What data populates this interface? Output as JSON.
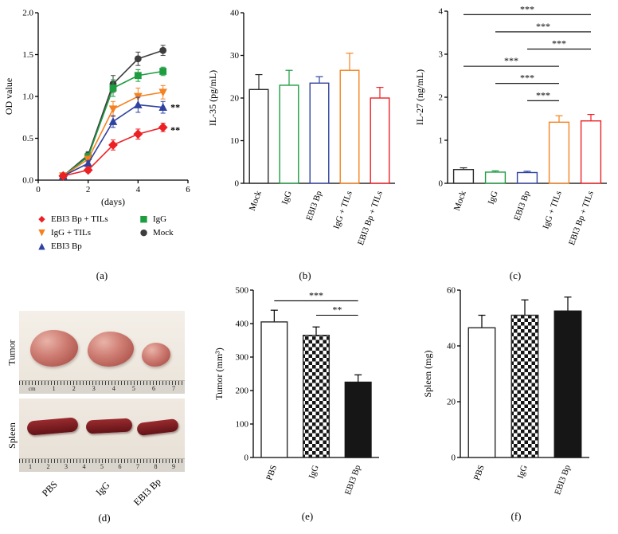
{
  "panels": {
    "a": "(a)",
    "b": "(b)",
    "c": "(c)",
    "d": "(d)",
    "e": "(e)",
    "f": "(f)"
  },
  "colors": {
    "black": "#2b2b2b",
    "mock_gray": "#3d3d3d",
    "green": "#1e9c40",
    "blue": "#3042a0",
    "orange": "#f58220",
    "red": "#ed2024"
  },
  "legend": [
    {
      "label": "EBI3 Bp + TILs",
      "symbol": "◆",
      "color": "#ed2024",
      "icon": "diamond-icon"
    },
    {
      "label": "IgG + TILs",
      "symbol": "▼",
      "color": "#f58220",
      "icon": "triangle-down-icon"
    },
    {
      "label": "EBI3 Bp",
      "symbol": "▲",
      "color": "#3042a0",
      "icon": "triangle-up-icon"
    },
    {
      "label": "IgG",
      "symbol": "■",
      "color": "#1e9c40",
      "icon": "square-icon"
    },
    {
      "label": "Mock",
      "symbol": "●",
      "color": "#3d3d3d",
      "icon": "circle-icon"
    }
  ],
  "photo": {
    "row_labels": [
      "Tumor",
      "Spleen"
    ],
    "col_labels": [
      "PBS",
      "IgG",
      "EBI3 Bp"
    ],
    "tumor_ruler_unit": "cm",
    "tumor_ruler": [
      "1",
      "2",
      "3",
      "4",
      "5",
      "6",
      "7"
    ],
    "spleen_ruler": [
      "1",
      "2",
      "3",
      "4",
      "5",
      "6",
      "7",
      "8",
      "9"
    ]
  },
  "chart_data": [
    {
      "id": "a",
      "type": "line",
      "xlabel": "(days)",
      "ylabel": "OD value",
      "xlim": [
        0,
        6
      ],
      "xticks": [
        0,
        2,
        4,
        6
      ],
      "ylim": [
        0,
        2.0
      ],
      "yticks": [
        0,
        0.5,
        1.0,
        1.5,
        2.0
      ],
      "ydec": 1,
      "x": [
        1,
        2,
        3,
        4,
        5
      ],
      "series": [
        {
          "name": "Mock",
          "marker": "circle",
          "color": "#3d3d3d",
          "values": [
            0.05,
            0.3,
            1.15,
            1.45,
            1.55
          ],
          "errors": [
            0.02,
            0.04,
            0.1,
            0.08,
            0.06
          ]
        },
        {
          "name": "IgG",
          "marker": "square",
          "color": "#1e9c40",
          "values": [
            0.05,
            0.28,
            1.1,
            1.25,
            1.3
          ],
          "errors": [
            0.02,
            0.04,
            0.1,
            0.07,
            0.05
          ]
        },
        {
          "name": "IgG + TILs",
          "marker": "triangle-down",
          "color": "#f58220",
          "values": [
            0.05,
            0.25,
            0.85,
            1.0,
            1.05
          ],
          "errors": [
            0.02,
            0.03,
            0.09,
            0.1,
            0.08
          ]
        },
        {
          "name": "EBI3 Bp",
          "marker": "triangle-up",
          "color": "#3042a0",
          "values": [
            0.05,
            0.2,
            0.7,
            0.9,
            0.87
          ],
          "errors": [
            0.02,
            0.03,
            0.07,
            0.09,
            0.07
          ]
        },
        {
          "name": "EBI3 Bp + TILs",
          "marker": "diamond",
          "color": "#ed2024",
          "values": [
            0.05,
            0.12,
            0.42,
            0.55,
            0.63
          ],
          "errors": [
            0.02,
            0.03,
            0.06,
            0.06,
            0.05
          ]
        }
      ],
      "annotations": [
        {
          "x": 5.3,
          "y": 0.87,
          "text": "**"
        },
        {
          "x": 5.3,
          "y": 0.6,
          "text": "**"
        }
      ]
    },
    {
      "id": "b",
      "type": "bar",
      "ylabel": "IL-35 (pg/mL)",
      "ylim": [
        0,
        40
      ],
      "yticks": [
        0,
        10,
        20,
        30,
        40
      ],
      "ydec": 0,
      "categories": [
        "Mock",
        "IgG",
        "EBI3 Bp",
        "IgG + TILs",
        "EBI3 Bp + TILs"
      ],
      "values": [
        22,
        23,
        23.5,
        26.5,
        20
      ],
      "errors": [
        3.5,
        3.5,
        1.5,
        4,
        2.5
      ],
      "bar_styles": [
        {
          "fill": "none",
          "stroke": "#2b2b2b"
        },
        {
          "fill": "none",
          "stroke": "#1e9c40"
        },
        {
          "fill": "none",
          "stroke": "#3042a0"
        },
        {
          "fill": "none",
          "stroke": "#f58220"
        },
        {
          "fill": "none",
          "stroke": "#ed2024"
        }
      ]
    },
    {
      "id": "c",
      "type": "bar",
      "ylabel": "IL-27 (ng/mL)",
      "ylim": [
        0,
        4
      ],
      "yticks": [
        0,
        1,
        2,
        3,
        4
      ],
      "ydec": 0,
      "categories": [
        "Mock",
        "IgG",
        "EBI3 Bp",
        "IgG + TILs",
        "EBI3 Bp + TILs"
      ],
      "values": [
        0.32,
        0.26,
        0.25,
        1.42,
        1.45
      ],
      "errors": [
        0.04,
        0.03,
        0.03,
        0.15,
        0.15
      ],
      "bar_styles": [
        {
          "fill": "none",
          "stroke": "#2b2b2b"
        },
        {
          "fill": "none",
          "stroke": "#1e9c40"
        },
        {
          "fill": "none",
          "stroke": "#3042a0"
        },
        {
          "fill": "none",
          "stroke": "#f58220"
        },
        {
          "fill": "none",
          "stroke": "#ed2024"
        }
      ],
      "comparisons": [
        {
          "from": 0,
          "to": 4,
          "y": 3.92,
          "label": "***"
        },
        {
          "from": 1,
          "to": 4,
          "y": 3.52,
          "label": "***"
        },
        {
          "from": 2,
          "to": 4,
          "y": 3.12,
          "label": "***"
        },
        {
          "from": 0,
          "to": 3,
          "y": 2.72,
          "label": "***"
        },
        {
          "from": 1,
          "to": 3,
          "y": 2.32,
          "label": "***"
        },
        {
          "from": 2,
          "to": 3,
          "y": 1.92,
          "label": "***"
        }
      ]
    },
    {
      "id": "e",
      "type": "bar",
      "ylabel": "Tumor (mm³)",
      "ylim": [
        0,
        500
      ],
      "yticks": [
        0,
        100,
        200,
        300,
        400,
        500
      ],
      "ydec": 0,
      "categories": [
        "PBS",
        "IgG",
        "EBI3 Bp"
      ],
      "values": [
        405,
        365,
        225
      ],
      "errors": [
        35,
        25,
        22
      ],
      "bar_styles": [
        {
          "fill": "#ffffff",
          "stroke": "#2b2b2b"
        },
        {
          "fill": "checker",
          "stroke": "#2b2b2b"
        },
        {
          "fill": "#161616",
          "stroke": "#161616"
        }
      ],
      "comparisons": [
        {
          "from": 0,
          "to": 2,
          "y": 468,
          "label": "***"
        },
        {
          "from": 1,
          "to": 2,
          "y": 425,
          "label": "**"
        }
      ]
    },
    {
      "id": "f",
      "type": "bar",
      "ylabel": "Spleen (mg)",
      "ylim": [
        0,
        60
      ],
      "yticks": [
        0,
        20,
        40,
        60
      ],
      "ydec": 0,
      "categories": [
        "PBS",
        "IgG",
        "EBI3 Bp"
      ],
      "values": [
        46.5,
        51,
        52.5
      ],
      "errors": [
        4.5,
        5.5,
        5
      ],
      "bar_styles": [
        {
          "fill": "#ffffff",
          "stroke": "#2b2b2b"
        },
        {
          "fill": "checker",
          "stroke": "#2b2b2b"
        },
        {
          "fill": "#161616",
          "stroke": "#161616"
        }
      ]
    }
  ]
}
